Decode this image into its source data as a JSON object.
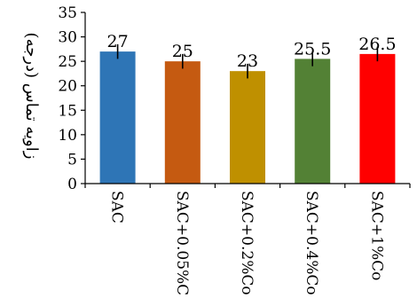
{
  "chart_data": {
    "type": "bar",
    "title": "",
    "ylabel": "زاویه تماس (درجه)",
    "xlabel": "",
    "ylim": [
      0,
      35
    ],
    "yticks": [
      0,
      5,
      10,
      15,
      20,
      25,
      30,
      35
    ],
    "categories": [
      "SAC",
      "SAC+0.05%Co",
      "SAC+0.2%Co",
      "SAC+0.4%Co",
      "SAC+1%Co"
    ],
    "values": [
      27,
      25,
      23,
      25.5,
      26.5
    ],
    "value_labels": [
      "27",
      "25",
      "23",
      "25.5",
      "26.5"
    ],
    "error": [
      1.5,
      1.5,
      1.5,
      1.5,
      1.5
    ],
    "colors": [
      "#2e75b6",
      "#c55a11",
      "#bf9000",
      "#538135",
      "#ff0000"
    ],
    "grid": false,
    "legend": "none"
  }
}
